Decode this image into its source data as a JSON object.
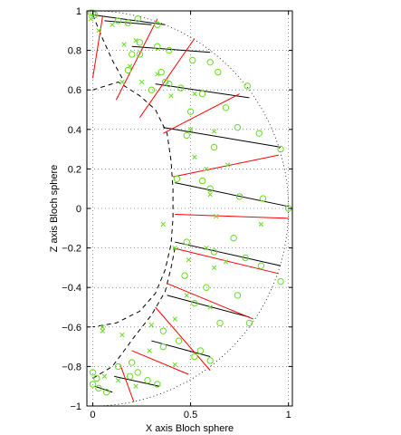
{
  "chart_data": {
    "type": "scatter",
    "xlabel": "X axis Bloch sphere",
    "ylabel": "Z axis Bloch sphere",
    "xlim": [
      -0.03,
      1.02
    ],
    "ylim": [
      -1,
      1
    ],
    "x_ticks": [
      0,
      0.5,
      1
    ],
    "x_tick_labels": [
      "0",
      "0.5",
      "1"
    ],
    "y_ticks": [
      -1,
      -0.8,
      -0.6,
      -0.4,
      -0.2,
      0,
      0.2,
      0.4,
      0.6,
      0.8,
      1
    ],
    "y_tick_labels": [
      "−1",
      "−0.8",
      "−0.6",
      "−0.4",
      "−0.2",
      "0",
      "0.2",
      "0.4",
      "0.6",
      "0.8",
      "1"
    ],
    "grid": true,
    "colors": {
      "black_line": "#000000",
      "red_line": "#ff0000",
      "marker": "#66dd22",
      "unit_circle": "#000000"
    },
    "unit_circle": {
      "style": "dotted",
      "radius": 1
    },
    "dashed_boundary": [
      [
        0.0,
        0.6
      ],
      [
        0.13,
        0.64
      ],
      [
        0.24,
        0.57
      ],
      [
        0.32,
        0.5
      ],
      [
        0.38,
        0.38
      ],
      [
        0.4,
        0.24
      ],
      [
        0.41,
        0.1
      ],
      [
        0.41,
        -0.05
      ],
      [
        0.4,
        -0.18
      ],
      [
        0.37,
        -0.31
      ],
      [
        0.32,
        -0.43
      ],
      [
        0.24,
        -0.52
      ],
      [
        0.12,
        -0.58
      ],
      [
        0.0,
        -0.6
      ]
    ],
    "dashed_boundary_2": [
      [
        0.0,
        0.98
      ],
      [
        0.05,
        0.86
      ],
      [
        0.1,
        0.75
      ],
      [
        0.15,
        0.66
      ]
    ],
    "dashed_boundary_3": [
      [
        0.0,
        -0.86
      ],
      [
        0.1,
        -0.8
      ],
      [
        0.16,
        -0.72
      ],
      [
        0.22,
        -0.64
      ],
      [
        0.3,
        -0.54
      ],
      [
        0.37,
        -0.42
      ],
      [
        0.4,
        -0.3
      ],
      [
        0.42,
        -0.2
      ]
    ],
    "black_segments": [
      [
        [
          0.0,
          0.98
        ],
        [
          0.37,
          0.93
        ]
      ],
      [
        [
          0.06,
          0.95
        ],
        [
          0.3,
          0.93
        ]
      ],
      [
        [
          0.2,
          0.82
        ],
        [
          0.6,
          0.79
        ]
      ],
      [
        [
          0.32,
          0.63
        ],
        [
          0.8,
          0.56
        ]
      ],
      [
        [
          0.36,
          0.41
        ],
        [
          0.96,
          0.31
        ]
      ],
      [
        [
          0.42,
          0.13
        ],
        [
          1.0,
          0.01
        ]
      ],
      [
        [
          0.42,
          -0.17
        ],
        [
          0.96,
          -0.29
        ]
      ],
      [
        [
          0.38,
          -0.44
        ],
        [
          0.8,
          -0.55
        ]
      ],
      [
        [
          0.3,
          -0.67
        ],
        [
          0.6,
          -0.75
        ]
      ],
      [
        [
          0.11,
          -0.85
        ],
        [
          0.34,
          -0.9
        ]
      ],
      [
        [
          0.01,
          -0.9
        ],
        [
          0.1,
          -0.93
        ]
      ]
    ],
    "red_segments": [
      [
        [
          0.0,
          0.66
        ],
        [
          0.05,
          0.97
        ]
      ],
      [
        [
          0.12,
          0.55
        ],
        [
          0.33,
          0.96
        ]
      ],
      [
        [
          0.24,
          0.46
        ],
        [
          0.52,
          0.86
        ]
      ],
      [
        [
          0.36,
          0.38
        ],
        [
          0.75,
          0.58
        ]
      ],
      [
        [
          0.41,
          0.16
        ],
        [
          0.95,
          0.27
        ]
      ],
      [
        [
          0.42,
          -0.03
        ],
        [
          1.0,
          -0.05
        ]
      ],
      [
        [
          0.41,
          -0.2
        ],
        [
          0.95,
          -0.33
        ]
      ],
      [
        [
          0.38,
          -0.38
        ],
        [
          0.82,
          -0.56
        ]
      ],
      [
        [
          0.32,
          -0.5
        ],
        [
          0.6,
          -0.82
        ]
      ],
      [
        [
          0.2,
          -0.72
        ],
        [
          0.49,
          -0.84
        ]
      ],
      [
        [
          0.14,
          -0.79
        ],
        [
          0.21,
          -0.98
        ]
      ]
    ],
    "circle_markers": [
      [
        0.0,
        0.99
      ],
      [
        0.01,
        0.98
      ],
      [
        -0.01,
        0.99
      ],
      [
        0.13,
        0.95
      ],
      [
        0.18,
        0.94
      ],
      [
        0.23,
        0.96
      ],
      [
        0.33,
        0.93
      ],
      [
        0.24,
        0.84
      ],
      [
        0.33,
        0.82
      ],
      [
        0.39,
        0.8
      ],
      [
        0.2,
        0.78
      ],
      [
        0.18,
        0.7
      ],
      [
        0.24,
        0.78
      ],
      [
        0.35,
        0.69
      ],
      [
        0.37,
        0.64
      ],
      [
        0.39,
        0.63
      ],
      [
        0.51,
        0.75
      ],
      [
        0.6,
        0.74
      ],
      [
        0.64,
        0.69
      ],
      [
        0.56,
        0.58
      ],
      [
        0.45,
        0.61
      ],
      [
        0.3,
        0.6
      ],
      [
        0.5,
        0.49
      ],
      [
        0.68,
        0.51
      ],
      [
        0.79,
        0.62
      ],
      [
        0.48,
        0.37
      ],
      [
        0.62,
        0.31
      ],
      [
        0.74,
        0.41
      ],
      [
        0.85,
        0.38
      ],
      [
        0.96,
        0.3
      ],
      [
        0.43,
        0.15
      ],
      [
        0.56,
        0.14
      ],
      [
        0.75,
        0.06
      ],
      [
        0.87,
        0.05
      ],
      [
        1.0,
        0.0
      ],
      [
        0.6,
        0.1
      ],
      [
        0.48,
        -0.17
      ],
      [
        0.62,
        -0.22
      ],
      [
        0.78,
        -0.25
      ],
      [
        0.86,
        -0.29
      ],
      [
        0.96,
        -0.37
      ],
      [
        0.72,
        -0.15
      ],
      [
        0.47,
        -0.34
      ],
      [
        0.58,
        -0.4
      ],
      [
        0.74,
        -0.44
      ],
      [
        0.8,
        -0.58
      ],
      [
        0.65,
        -0.58
      ],
      [
        0.52,
        -0.48
      ],
      [
        0.36,
        -0.62
      ],
      [
        0.44,
        -0.67
      ],
      [
        0.55,
        -0.72
      ],
      [
        0.6,
        -0.77
      ],
      [
        0.52,
        -0.75
      ],
      [
        0.36,
        -0.7
      ],
      [
        0.19,
        -0.85
      ],
      [
        0.23,
        -0.83
      ],
      [
        0.28,
        -0.87
      ],
      [
        0.33,
        -0.89
      ],
      [
        0.13,
        -0.8
      ],
      [
        0.2,
        -0.78
      ],
      [
        0.02,
        -0.86
      ],
      [
        0.0,
        -0.89
      ],
      [
        0.03,
        -0.91
      ],
      [
        0.07,
        -0.93
      ],
      [
        0.0,
        -0.83
      ]
    ],
    "x_markers": [
      [
        0.03,
        0.9
      ],
      [
        0.1,
        0.93
      ],
      [
        -0.01,
        0.96
      ],
      [
        0.16,
        0.83
      ],
      [
        0.22,
        0.85
      ],
      [
        0.19,
        0.72
      ],
      [
        0.15,
        0.64
      ],
      [
        0.25,
        0.64
      ],
      [
        0.33,
        0.68
      ],
      [
        0.52,
        0.58
      ],
      [
        0.4,
        0.57
      ],
      [
        0.5,
        0.4
      ],
      [
        0.62,
        0.39
      ],
      [
        0.58,
        0.2
      ],
      [
        0.69,
        0.22
      ],
      [
        0.52,
        0.26
      ],
      [
        0.6,
        0.07
      ],
      [
        0.63,
        -0.04
      ],
      [
        0.86,
        -0.08
      ],
      [
        0.58,
        -0.2
      ],
      [
        0.68,
        -0.27
      ],
      [
        0.49,
        -0.26
      ],
      [
        0.62,
        -0.3
      ],
      [
        0.48,
        -0.44
      ],
      [
        0.6,
        -0.5
      ],
      [
        0.42,
        -0.56
      ],
      [
        0.3,
        -0.59
      ],
      [
        0.05,
        -0.62
      ],
      [
        0.15,
        -0.64
      ],
      [
        0.29,
        -0.72
      ],
      [
        0.42,
        -0.79
      ],
      [
        0.05,
        -0.6
      ],
      [
        0.06,
        -0.85
      ],
      [
        0.22,
        -0.9
      ],
      [
        0.13,
        -0.87
      ],
      [
        0.42,
        -0.2
      ],
      [
        0.36,
        -0.08
      ]
    ]
  }
}
